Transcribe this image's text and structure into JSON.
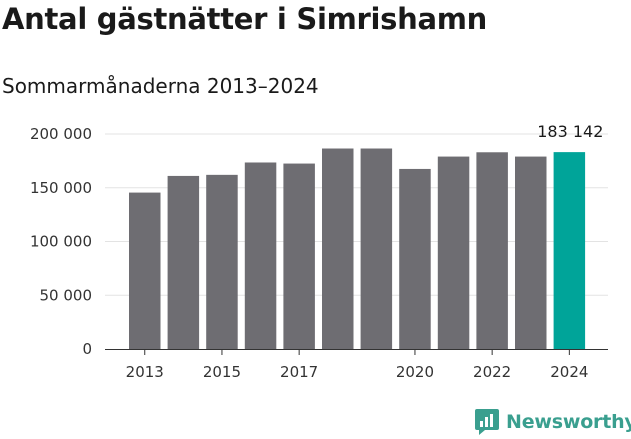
{
  "header": {
    "title": "Antal gästnätter i Simrishamn",
    "subtitle": "Sommarmånaderna 2013–2024"
  },
  "brand": {
    "name": "Newsworthy"
  },
  "colors": {
    "bar": "#6e6d72",
    "highlight": "#00a499",
    "axis": "#333333",
    "grid": "#e3e3e3"
  },
  "chart_data": {
    "type": "bar",
    "categories": [
      "2013",
      "2014",
      "2015",
      "2016",
      "2017",
      "2018",
      "2019",
      "2020",
      "2021",
      "2022",
      "2023",
      "2024"
    ],
    "values": [
      145500,
      161000,
      162000,
      173500,
      172500,
      186500,
      186500,
      167500,
      179000,
      183000,
      179000,
      183142
    ],
    "highlight_index": 11,
    "data_label": "183 142",
    "ylim": [
      0,
      200000
    ],
    "yticks": [
      0,
      50000,
      100000,
      150000,
      200000
    ],
    "ytick_labels": [
      "0",
      "50 000",
      "100 000",
      "150 000",
      "200 000"
    ],
    "xtick_labels": [
      "2013",
      "2015",
      "2017",
      "2020",
      "2022",
      "2024"
    ],
    "xtick_categories": [
      "2013",
      "2015",
      "2017",
      "2020",
      "2022",
      "2024"
    ],
    "grid": true,
    "legend": "none"
  }
}
